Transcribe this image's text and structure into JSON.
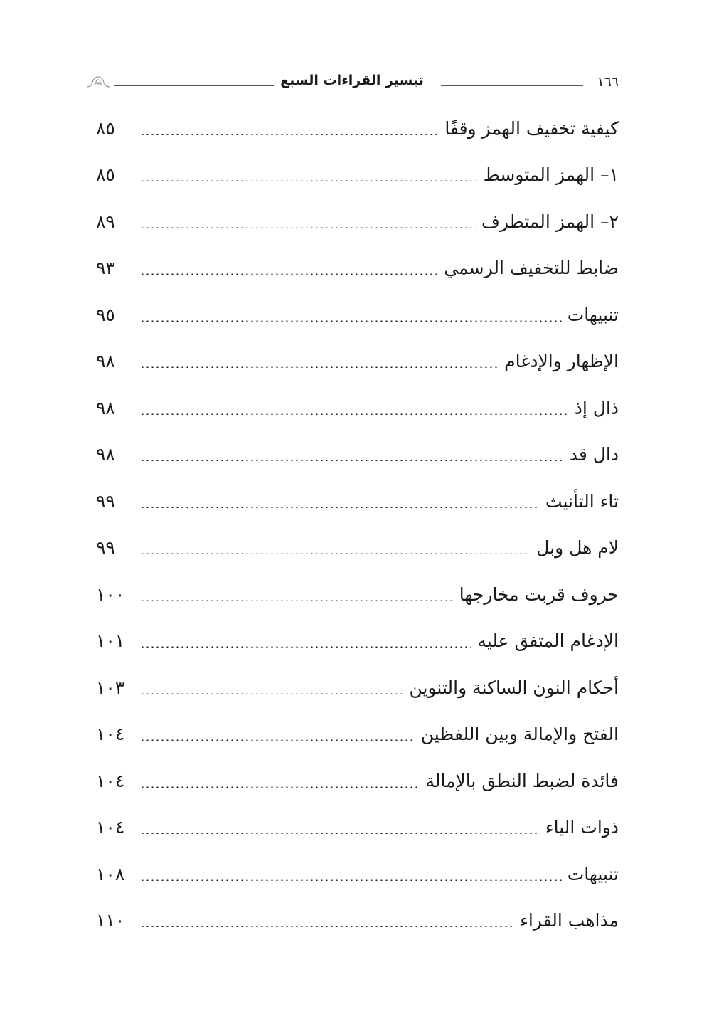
{
  "header": {
    "page_number": "١٦٦",
    "book_title": "تيسير القراءات السبع",
    "ornament_icon": "floral-ornament"
  },
  "entries": [
    {
      "title": "كيفية تخفيف الهمز وقفًا",
      "page": "٨٥"
    },
    {
      "title": "١– الهمز المتوسط",
      "page": "٨٥"
    },
    {
      "title": "٢– الهمز المتطرف",
      "page": "٨٩"
    },
    {
      "title": "ضابط للتخفيف الرسمي",
      "page": "٩٣"
    },
    {
      "title": "تنبيهات",
      "page": "٩٥"
    },
    {
      "title": "الإظهار والإدغام",
      "page": "٩٨"
    },
    {
      "title": "ذال إذ",
      "page": "٩٨"
    },
    {
      "title": "دال قد",
      "page": "٩٨"
    },
    {
      "title": "تاء التأنيث",
      "page": "٩٩"
    },
    {
      "title": "لام هل وبل",
      "page": "٩٩"
    },
    {
      "title": "حروف قربت مخارجها",
      "page": "١٠٠"
    },
    {
      "title": "الإدغام المتفق عليه",
      "page": "١٠١"
    },
    {
      "title": "أحكام النون الساكنة والتنوين",
      "page": "١٠٣"
    },
    {
      "title": "الفتح والإمالة وبين اللفظين",
      "page": "١٠٤"
    },
    {
      "title": "فائدة لضبط النطق بالإمالة",
      "page": "١٠٤"
    },
    {
      "title": "ذوات الياء",
      "page": "١٠٤"
    },
    {
      "title": "تنبيهات",
      "page": "١٠٨"
    },
    {
      "title": "مذاهب القراء",
      "page": "١١٠"
    }
  ]
}
